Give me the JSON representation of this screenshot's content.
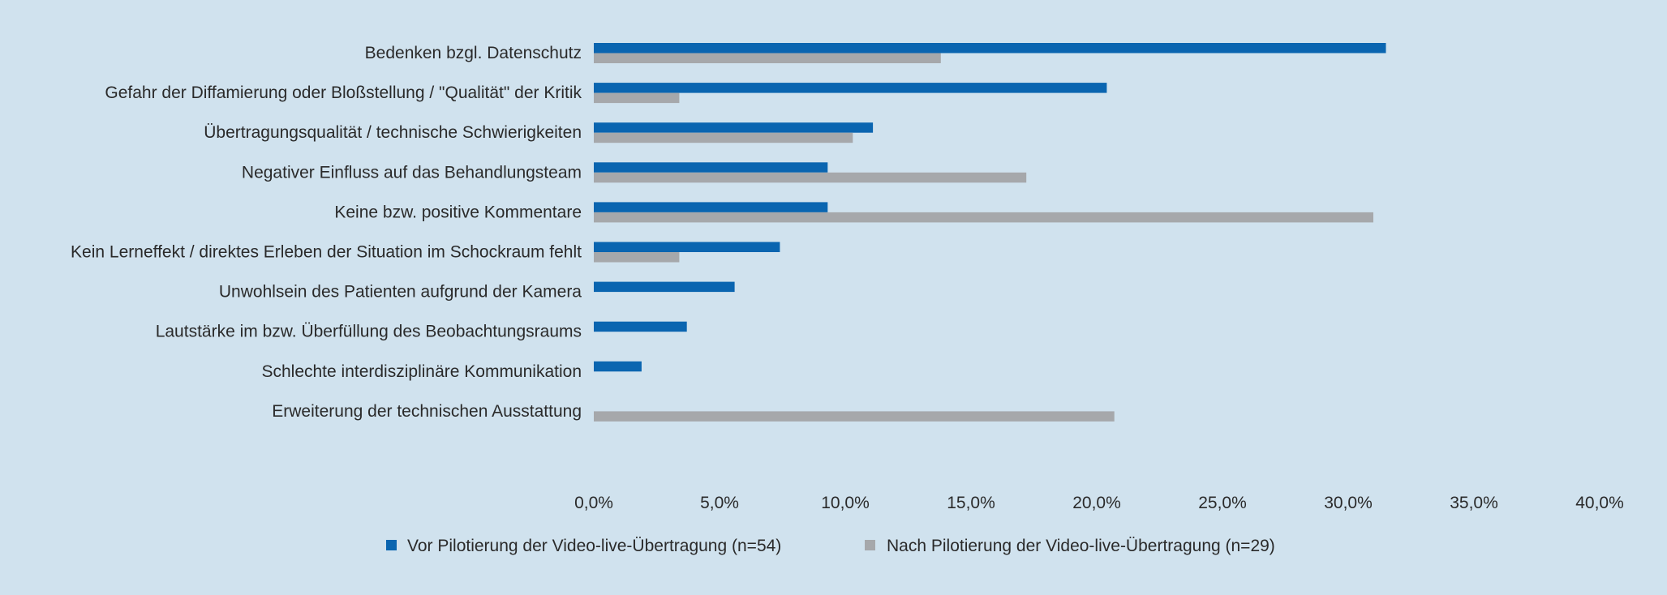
{
  "chart_data": {
    "type": "bar",
    "orientation": "horizontal",
    "categories": [
      "Bedenken bzgl. Datenschutz",
      "Gefahr der Diffamierung oder Bloßstellung / \"Qualität\" der Kritik",
      "Übertragungsqualität / technische Schwierigkeiten",
      "Negativer Einfluss auf das Behandlungsteam",
      "Keine bzw. positive Kommentare",
      "Kein Lerneffekt / direktes Erleben der Situation im Schockraum fehlt",
      "Unwohlsein des Patienten aufgrund der Kamera",
      "Lautstärke im bzw. Überfüllung des Beobachtungsraums",
      "Schlechte interdisziplinäre Kommunikation",
      "Erweiterung der technischen Ausstattung"
    ],
    "series": [
      {
        "name": "Vor Pilotierung der Video-live-Übertragung (n=54)",
        "color": "#0a65b0",
        "values": [
          31.5,
          20.4,
          11.1,
          9.3,
          9.3,
          7.4,
          5.6,
          3.7,
          1.9,
          0.0
        ]
      },
      {
        "name": "Nach Pilotierung der Video-live-Übertragung (n=29)",
        "color": "#a6a8ab",
        "values": [
          13.8,
          3.4,
          10.3,
          17.2,
          31.0,
          3.4,
          0.0,
          0.0,
          0.0,
          20.7
        ]
      }
    ],
    "xlim": [
      0,
      40
    ],
    "x_ticks": [
      "0,0%",
      "5,0%",
      "10,0%",
      "15,0%",
      "20,0%",
      "25,0%",
      "30,0%",
      "35,0%",
      "40,0%"
    ],
    "legend_position": "bottom",
    "grid": false
  }
}
